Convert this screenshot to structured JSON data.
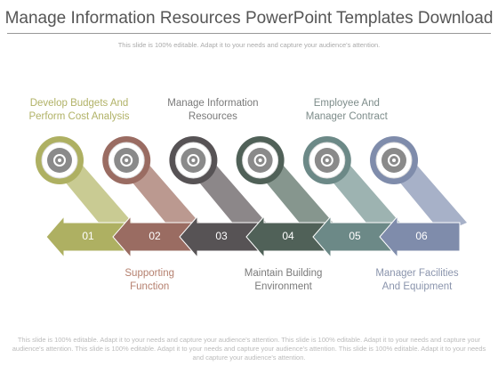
{
  "title": "Manage Information Resources PowerPoint Templates Download",
  "subtitle": "This slide is 100% editable. Adapt it to your needs and capture your audience's attention.",
  "steps": [
    {
      "number": "01",
      "label": "Develop Budgets And\nPerform Cost Analysis"
    },
    {
      "number": "02",
      "label": "Supporting\nFunction"
    },
    {
      "number": "03",
      "label": "Manage Information\nResources"
    },
    {
      "number": "04",
      "label": "Maintain Building\nEnvironment"
    },
    {
      "number": "05",
      "label": "Employee And\nManager Contract"
    },
    {
      "number": "06",
      "label": "Manager Facilities\nAnd Equipment"
    }
  ],
  "footer": "This slide is 100% editable. Adapt it to your needs and capture your audience's attention. This slide is 100% editable. Adapt it to your needs and capture your audience's attention. This slide is 100% editable. Adapt it to your needs and capture your audience's attention. This slide is 100% editable. Adapt it to your needs and capture your audience's attention."
}
